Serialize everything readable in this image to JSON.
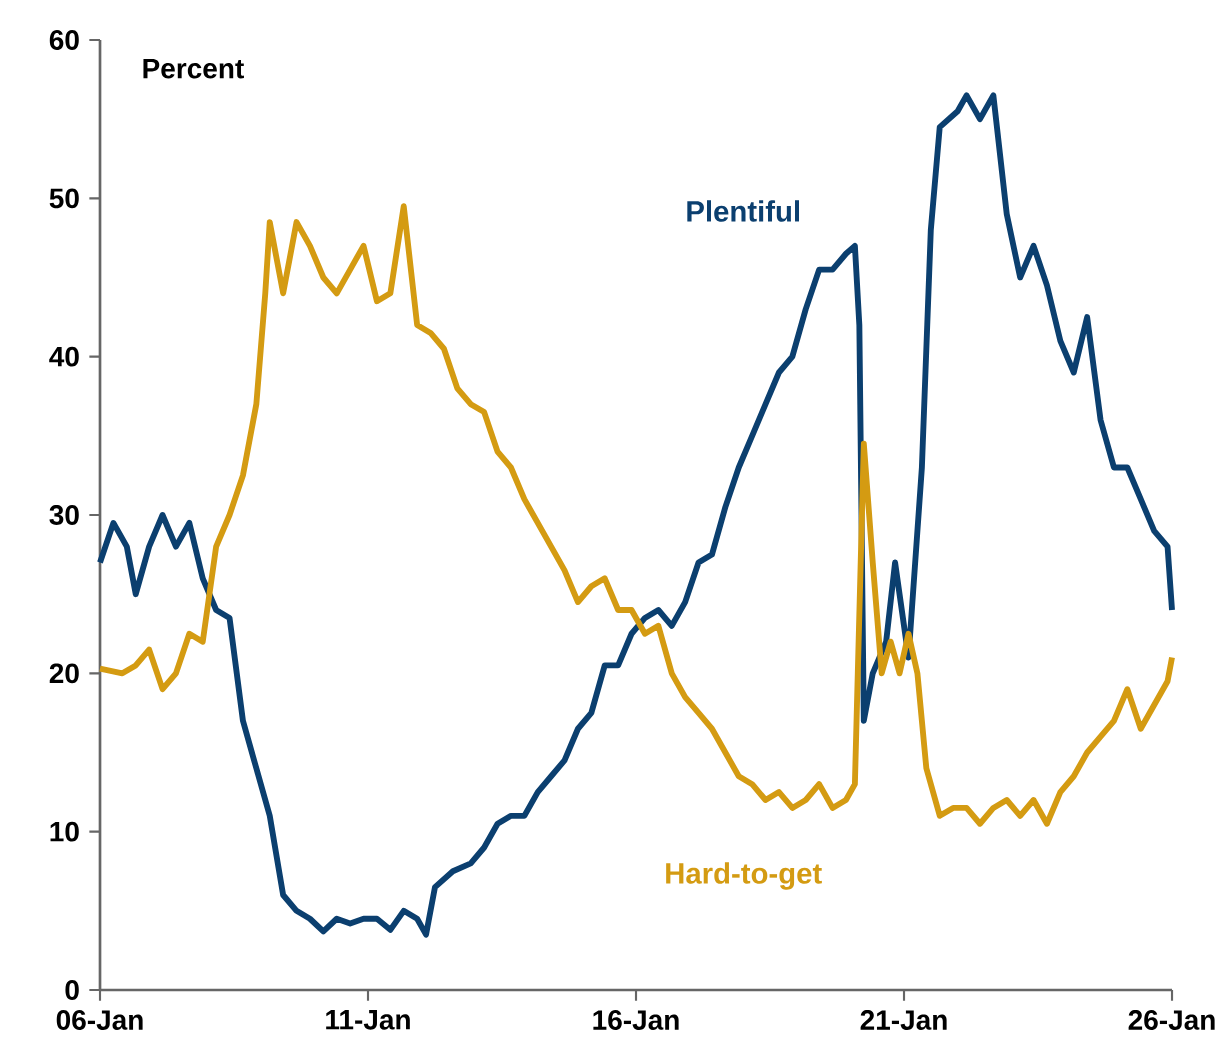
{
  "chart_data": {
    "type": "line",
    "ylabel": "Percent",
    "x": [
      "2006-01",
      "2006-04",
      "2006-07",
      "2006-09",
      "2006-12",
      "2007-03",
      "2007-06",
      "2007-09",
      "2007-12",
      "2008-03",
      "2008-06",
      "2008-09",
      "2008-12",
      "2009-03",
      "2009-06",
      "2009-09",
      "2009-12",
      "2010-03",
      "2010-06",
      "2010-09",
      "2010-12",
      "2011-03",
      "2011-06",
      "2011-09",
      "2011-12",
      "2012-02",
      "2012-04",
      "2012-08",
      "2012-12",
      "2013-03",
      "2013-06",
      "2013-09",
      "2013-12",
      "2014-03",
      "2014-06",
      "2014-09",
      "2014-12",
      "2015-03",
      "2015-06",
      "2015-09",
      "2015-12",
      "2016-03",
      "2016-06",
      "2016-09",
      "2016-12",
      "2017-03",
      "2017-06",
      "2017-09",
      "2017-12",
      "2018-03",
      "2018-06",
      "2018-09",
      "2018-12",
      "2019-03",
      "2019-06",
      "2019-09",
      "2019-12",
      "2020-02",
      "2020-03",
      "2020-04",
      "2020-06",
      "2020-09",
      "2020-11",
      "2021-02",
      "2021-05",
      "2021-07",
      "2021-09",
      "2022-01",
      "2022-03",
      "2022-06",
      "2022-09",
      "2022-12",
      "2023-03",
      "2023-06",
      "2023-09",
      "2023-12",
      "2024-03",
      "2024-06",
      "2024-09",
      "2024-12",
      "2025-03",
      "2025-06",
      "2025-09",
      "2025-12",
      "2026-01"
    ],
    "series": [
      {
        "name": "Plentiful",
        "color": "#0b3f6f",
        "values": [
          27,
          29.5,
          28,
          25,
          28,
          30,
          28,
          29.5,
          26,
          24,
          23.5,
          17,
          14,
          11,
          6,
          5,
          4.5,
          3.7,
          4.5,
          4.2,
          4.5,
          4.5,
          3.8,
          5,
          4.5,
          3.5,
          6.5,
          7.5,
          8,
          9,
          10.5,
          11,
          11,
          12.5,
          13.5,
          14.5,
          16.5,
          17.5,
          20.5,
          20.5,
          22.5,
          23.5,
          24,
          23,
          24.5,
          27,
          27.5,
          30.5,
          33,
          35,
          37,
          39,
          40,
          43,
          45.5,
          45.5,
          46.5,
          47,
          42,
          17,
          20,
          22,
          27,
          21,
          33,
          48,
          54.5,
          55.5,
          56.5,
          55,
          56.5,
          49,
          45,
          47,
          44.5,
          41,
          39,
          42.5,
          36,
          33,
          33,
          31,
          29,
          28,
          24
        ]
      },
      {
        "name": "Hard-to-get",
        "color": "#d49b12",
        "x": [
          "2006-01",
          "2006-06",
          "2006-09",
          "2006-12",
          "2007-03",
          "2007-06",
          "2007-09",
          "2007-12",
          "2008-03",
          "2008-06",
          "2008-09",
          "2008-12",
          "2009-02",
          "2009-03",
          "2009-06",
          "2009-09",
          "2009-12",
          "2010-03",
          "2010-06",
          "2010-09",
          "2010-12",
          "2011-03",
          "2011-06",
          "2011-09",
          "2011-12",
          "2012-03",
          "2012-06",
          "2012-09",
          "2012-12",
          "2013-03",
          "2013-06",
          "2013-09",
          "2013-12",
          "2014-03",
          "2014-06",
          "2014-09",
          "2014-12",
          "2015-03",
          "2015-06",
          "2015-09",
          "2015-12",
          "2016-03",
          "2016-06",
          "2016-09",
          "2016-12",
          "2017-03",
          "2017-06",
          "2017-09",
          "2017-12",
          "2018-03",
          "2018-06",
          "2018-09",
          "2018-12",
          "2019-03",
          "2019-06",
          "2019-09",
          "2019-12",
          "2020-02",
          "2020-04",
          "2020-06",
          "2020-08",
          "2020-10",
          "2020-12",
          "2021-02",
          "2021-04",
          "2021-06",
          "2021-09",
          "2021-12",
          "2022-03",
          "2022-06",
          "2022-09",
          "2022-12",
          "2023-03",
          "2023-06",
          "2023-09",
          "2023-12",
          "2024-03",
          "2024-06",
          "2024-09",
          "2024-12",
          "2025-03",
          "2025-06",
          "2025-09",
          "2025-12",
          "2026-01"
        ],
        "values": [
          20.3,
          20,
          20.5,
          21.5,
          19,
          20,
          22.5,
          22,
          28,
          30,
          32.5,
          37,
          44,
          48.5,
          44,
          48.5,
          47,
          45,
          44,
          45.5,
          47,
          43.5,
          44,
          49.5,
          42,
          41.5,
          40.5,
          38,
          37,
          36.5,
          34,
          33,
          31,
          29.5,
          28,
          26.5,
          24.5,
          25.5,
          26,
          24,
          24,
          22.5,
          23,
          20,
          18.5,
          17.5,
          16.5,
          15,
          13.5,
          13,
          12,
          12.5,
          11.5,
          12,
          13,
          11.5,
          12,
          13,
          34.5,
          27,
          20,
          22,
          20,
          22.5,
          20,
          14,
          11,
          11.5,
          11.5,
          10.5,
          11.5,
          12,
          11,
          12,
          10.5,
          12.5,
          13.5,
          15,
          16,
          17,
          19,
          16.5,
          18,
          19.5,
          21
        ]
      }
    ],
    "xlim": [
      "2006-01",
      "2026-01"
    ],
    "xticks": [
      {
        "value": "2006-01",
        "label": "06-Jan"
      },
      {
        "value": "2011-01",
        "label": "11-Jan"
      },
      {
        "value": "2016-01",
        "label": "16-Jan"
      },
      {
        "value": "2021-01",
        "label": "21-Jan"
      },
      {
        "value": "2026-01",
        "label": "26-Jan"
      }
    ],
    "ylim": [
      0,
      60
    ],
    "yticks": [
      0,
      10,
      20,
      30,
      40,
      50,
      60
    ],
    "grid": false,
    "legend": false,
    "marker": "none",
    "line_style": "solid"
  }
}
